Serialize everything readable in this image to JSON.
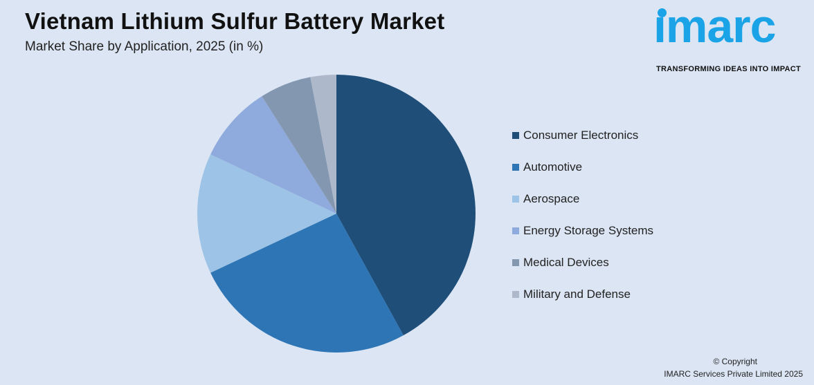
{
  "header": {
    "title": "Vietnam Lithium Sulfur Battery Market",
    "subtitle": "Market Share by Application, 2025 (in %)"
  },
  "logo": {
    "word": "ımarc",
    "tagline": "TRANSFORMING IDEAS INTO IMPACT",
    "color": "#1aa3e6"
  },
  "chart_data": {
    "type": "pie",
    "title": "Vietnam Lithium Sulfur Battery Market",
    "subtitle": "Market Share by Application, 2025 (in %)",
    "categories": [
      "Consumer Electronics",
      "Automotive",
      "Aerospace",
      "Energy Storage Systems",
      "Medical Devices",
      "Military and Defense"
    ],
    "values": [
      42,
      26,
      14,
      9,
      6,
      3
    ],
    "colors": [
      "#1f4e79",
      "#2e75b6",
      "#9dc3e6",
      "#8faadc",
      "#8497b0",
      "#adb9ca"
    ],
    "legend_position": "right"
  },
  "footer": {
    "copyright": "© Copyright",
    "company": "IMARC Services Private Limited 2025"
  }
}
